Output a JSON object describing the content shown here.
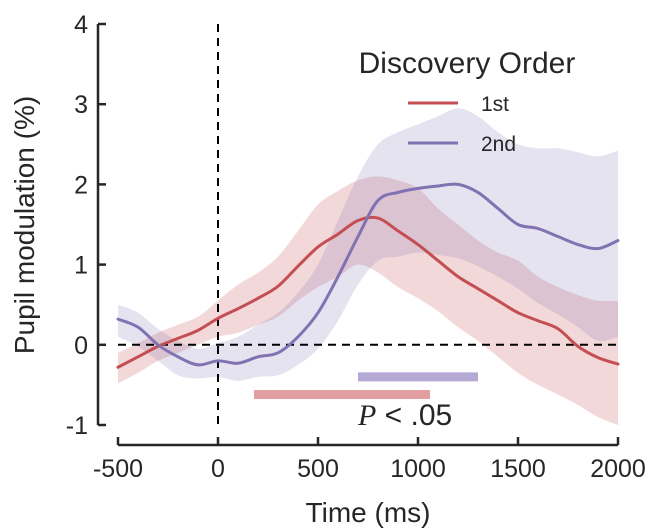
{
  "chart_data": {
    "type": "line",
    "xlabel": "Time (ms)",
    "ylabel": "Pupil modulation (%)",
    "xlim": [
      -500,
      2000
    ],
    "ylim": [
      -1,
      4
    ],
    "x_ticks": [
      -500,
      0,
      500,
      1000,
      1500,
      2000
    ],
    "y_ticks": [
      -1,
      0,
      1,
      2,
      3,
      4
    ],
    "x_tick_labels": [
      "-500",
      "0",
      "500",
      "1000",
      "1500",
      "2000"
    ],
    "y_tick_labels": [
      "-1",
      "0",
      "1",
      "2",
      "3",
      "4"
    ],
    "grid": false,
    "legend": {
      "title": "Discovery Order",
      "position": "top-right"
    },
    "reference_lines": [
      {
        "orientation": "vertical",
        "value": 0,
        "style": "dashed"
      },
      {
        "orientation": "horizontal",
        "value": 0,
        "style": "dashed"
      }
    ],
    "series": [
      {
        "name": "1st",
        "color": "#c44e52",
        "x": [
          -500,
          -400,
          -300,
          -200,
          -100,
          0,
          100,
          200,
          300,
          400,
          500,
          600,
          700,
          800,
          900,
          1000,
          1100,
          1200,
          1300,
          1400,
          1500,
          1600,
          1700,
          1800,
          1900,
          2000
        ],
        "y": [
          -0.28,
          -0.15,
          -0.02,
          0.08,
          0.18,
          0.33,
          0.45,
          0.58,
          0.73,
          0.98,
          1.22,
          1.38,
          1.55,
          1.58,
          1.42,
          1.25,
          1.05,
          0.85,
          0.7,
          0.55,
          0.4,
          0.3,
          0.2,
          -0.02,
          -0.16,
          -0.24
        ],
        "ci_lower": [
          -0.48,
          -0.35,
          -0.2,
          -0.1,
          0.0,
          0.1,
          0.15,
          0.25,
          0.35,
          0.55,
          0.72,
          0.85,
          1.0,
          0.9,
          0.72,
          0.58,
          0.42,
          0.22,
          0.05,
          -0.15,
          -0.35,
          -0.5,
          -0.62,
          -0.75,
          -0.9,
          -1.0
        ],
        "ci_upper": [
          -0.1,
          0.02,
          0.15,
          0.25,
          0.35,
          0.55,
          0.75,
          0.9,
          1.1,
          1.42,
          1.75,
          1.92,
          2.05,
          2.1,
          2.05,
          1.95,
          1.7,
          1.5,
          1.3,
          1.15,
          1.05,
          0.85,
          0.72,
          0.62,
          0.55,
          0.55
        ]
      },
      {
        "name": "2nd",
        "color": "#8172b2",
        "x": [
          -500,
          -400,
          -300,
          -200,
          -100,
          0,
          100,
          200,
          300,
          400,
          500,
          600,
          700,
          800,
          900,
          1000,
          1100,
          1200,
          1300,
          1400,
          1500,
          1600,
          1700,
          1800,
          1900,
          2000
        ],
        "y": [
          0.32,
          0.22,
          0.0,
          -0.15,
          -0.25,
          -0.2,
          -0.23,
          -0.15,
          -0.1,
          0.1,
          0.4,
          0.85,
          1.35,
          1.8,
          1.9,
          1.95,
          1.98,
          2.0,
          1.9,
          1.7,
          1.5,
          1.45,
          1.35,
          1.25,
          1.2,
          1.3
        ],
        "ci_lower": [
          0.1,
          -0.02,
          -0.2,
          -0.38,
          -0.42,
          -0.4,
          -0.45,
          -0.4,
          -0.38,
          -0.25,
          -0.05,
          0.3,
          0.75,
          1.05,
          1.1,
          1.15,
          1.12,
          1.08,
          0.98,
          0.85,
          0.7,
          0.52,
          0.38,
          0.22,
          0.05,
          0.1
        ],
        "ci_upper": [
          0.5,
          0.4,
          0.2,
          0.05,
          -0.05,
          0.02,
          0.1,
          0.25,
          0.4,
          0.65,
          1.0,
          1.55,
          2.1,
          2.5,
          2.65,
          2.75,
          2.85,
          2.95,
          2.85,
          2.65,
          2.5,
          2.45,
          2.45,
          2.4,
          2.35,
          2.42
        ]
      }
    ],
    "significance_bars": [
      {
        "series": "1st",
        "x_start": 180,
        "x_end": 1060,
        "y": -0.62,
        "color": "#e39ea1"
      },
      {
        "series": "2nd",
        "x_start": 700,
        "x_end": 1300,
        "y": -0.4,
        "color": "#b5aad6"
      }
    ],
    "annotation": {
      "symbol": "P",
      "text": " < .05"
    }
  }
}
